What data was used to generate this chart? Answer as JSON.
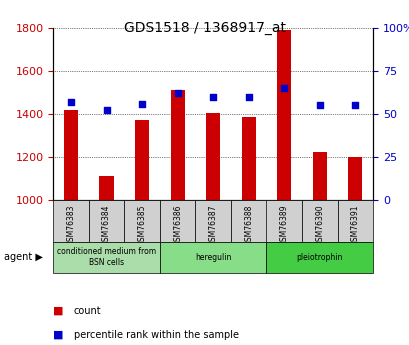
{
  "title": "GDS1518 / 1368917_at",
  "categories": [
    "GSM76383",
    "GSM76384",
    "GSM76385",
    "GSM76386",
    "GSM76387",
    "GSM76388",
    "GSM76389",
    "GSM76390",
    "GSM76391"
  ],
  "count_values": [
    1420,
    1110,
    1370,
    1510,
    1405,
    1385,
    1790,
    1225,
    1200
  ],
  "percentile_values": [
    57,
    52,
    56,
    62,
    60,
    60,
    65,
    55,
    55
  ],
  "ylim_left": [
    1000,
    1800
  ],
  "ylim_right": [
    0,
    100
  ],
  "left_ticks": [
    1000,
    1200,
    1400,
    1600,
    1800
  ],
  "right_ticks": [
    0,
    25,
    50,
    75,
    100
  ],
  "right_tick_labels": [
    "0",
    "25",
    "50",
    "75",
    "100%"
  ],
  "bar_color": "#cc0000",
  "dot_color": "#0000cc",
  "background_color": "#ffffff",
  "plot_bg_color": "#ffffff",
  "grid_color": "#000000",
  "agent_groups": [
    {
      "label": "conditioned medium from\nBSN cells",
      "start": 0,
      "end": 3,
      "color": "#aaddaa"
    },
    {
      "label": "heregulin",
      "start": 3,
      "end": 6,
      "color": "#88dd88"
    },
    {
      "label": "pleiotrophin",
      "start": 6,
      "end": 9,
      "color": "#44cc44"
    }
  ],
  "xlabel_color": "#cc0000",
  "ylabel_right_color": "#0000cc",
  "bar_width": 0.4,
  "base_value": 1000,
  "legend_items": [
    {
      "color": "#cc0000",
      "label": "count"
    },
    {
      "color": "#0000cc",
      "label": "percentile rank within the sample"
    }
  ]
}
